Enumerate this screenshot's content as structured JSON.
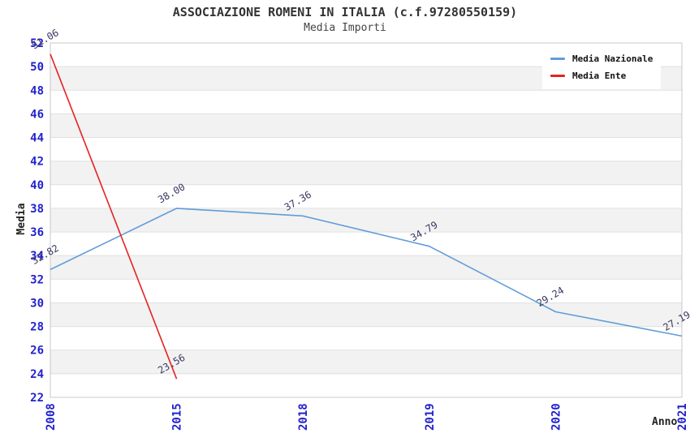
{
  "title": "ASSOCIAZIONE ROMENI IN ITALIA (c.f.97280550159)",
  "subtitle": "Media Importi",
  "axes": {
    "y_title": "Media",
    "x_title": "Anno",
    "y_ticks": [
      22,
      24,
      26,
      28,
      30,
      32,
      34,
      36,
      38,
      40,
      42,
      44,
      46,
      48,
      50,
      52
    ],
    "x_ticks": [
      "2008",
      "2015",
      "2018",
      "2019",
      "2020",
      "2021"
    ]
  },
  "legend": [
    {
      "label": "Media Nazionale",
      "color": "#5f9dd8"
    },
    {
      "label": "Media Ente",
      "color": "#e62222"
    }
  ],
  "colors": {
    "tick_label": "#2222cc",
    "data_label": "#383863",
    "band": "#f2f2f2",
    "grid_line": "#e0e0e0",
    "plot_border": "#c8c8c8",
    "title_color": "#333333"
  },
  "chart_data": {
    "type": "line",
    "title": "ASSOCIAZIONE ROMENI IN ITALIA (c.f.97280550159)",
    "subtitle": "Media Importi",
    "x": [
      "2008",
      "2015",
      "2018",
      "2019",
      "2020",
      "2021"
    ],
    "series": [
      {
        "name": "Media Nazionale",
        "color": "#5f9dd8",
        "values": [
          32.82,
          38.0,
          37.36,
          34.79,
          29.24,
          27.19
        ]
      },
      {
        "name": "Media Ente",
        "color": "#e62222",
        "values": [
          51.06,
          23.56,
          null,
          null,
          null,
          null
        ]
      }
    ],
    "xlabel": "Anno",
    "ylabel": "Media",
    "ylim": [
      22,
      52
    ],
    "y_tick_step": 2,
    "grid": "horizontal-bands-alternating",
    "legend_position": "top-right",
    "data_labels": "values shown rotated above each point, two decimals"
  }
}
